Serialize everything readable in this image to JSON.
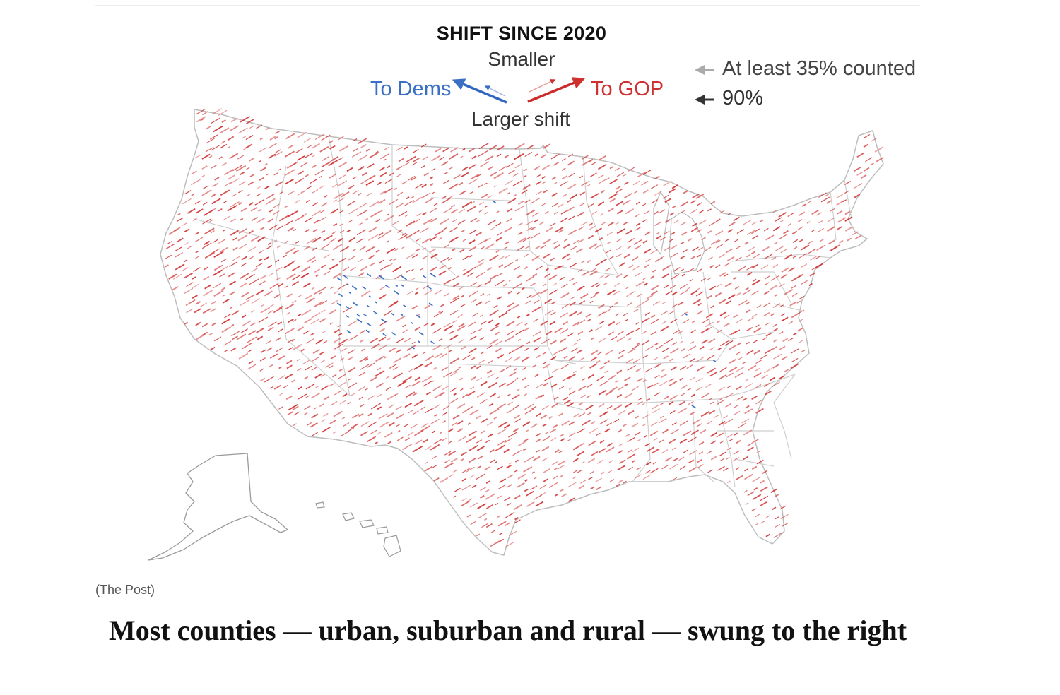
{
  "legend": {
    "title": "SHIFT SINCE 2020",
    "smaller": "Smaller",
    "larger": "Larger shift",
    "to_dems": "To Dems",
    "to_gop": "To GOP",
    "counted_35": "At least 35% counted",
    "counted_90": "90%"
  },
  "colors": {
    "gop": "#d0302f",
    "dems": "#3a6fc4",
    "border": "#c9c9c9"
  },
  "icons": {
    "gop_arrow": "arrow-up-right-icon",
    "dems_arrow": "arrow-up-left-icon",
    "counted_arrow": "arrow-left-icon"
  },
  "credit": "(The Post)",
  "headline": "Most counties — urban, suburban and rural — swung to the right"
}
